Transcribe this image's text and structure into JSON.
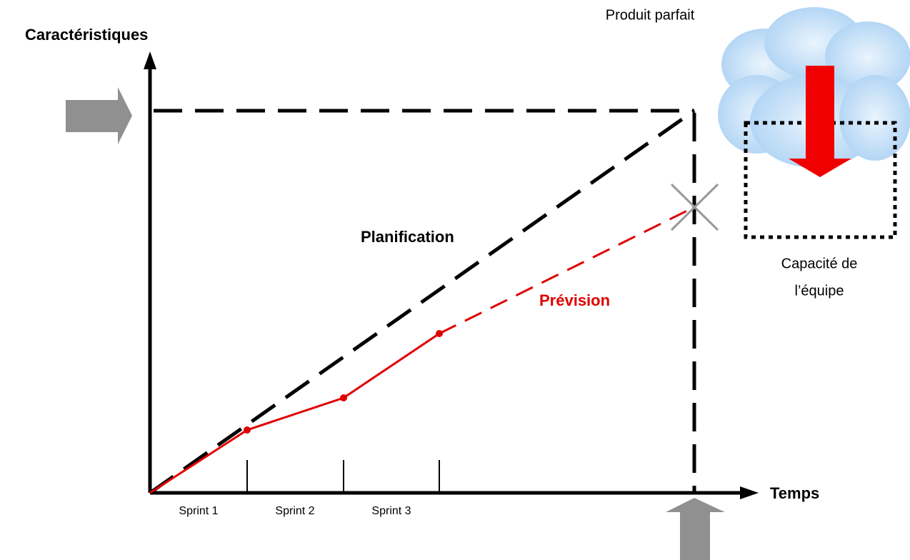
{
  "y_axis_label": "Caractéristiques",
  "x_axis_label": "Temps",
  "target_label": "Produit parfait",
  "planning_label": "Planification",
  "forecast_label": "Prévision",
  "capacity_label": [
    "Capacité de",
    "l’équipe"
  ],
  "sprints": [
    "Sprint 1",
    "Sprint 2",
    "Sprint 3"
  ]
}
